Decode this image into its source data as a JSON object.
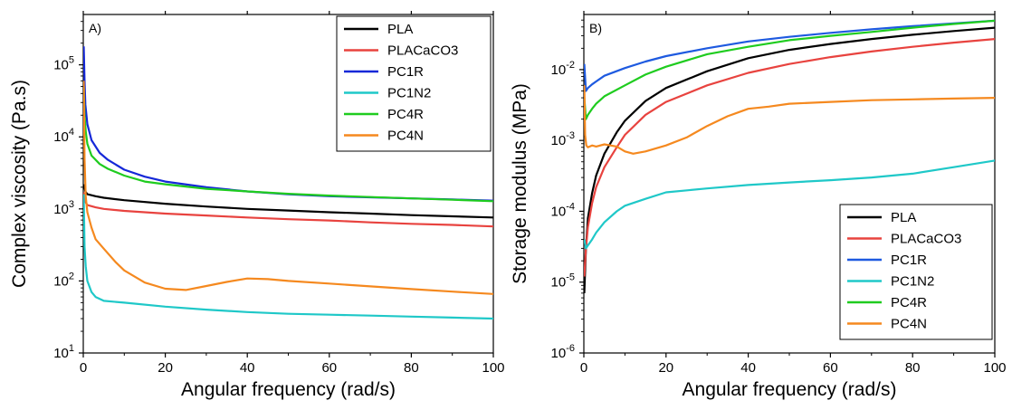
{
  "chart_data": [
    {
      "type": "line",
      "panel_label": "A)",
      "xlabel": "Angular frequency (rad/s)",
      "ylabel": "Complex viscosity (Pa.s)",
      "xlim": [
        0,
        100
      ],
      "ylim": [
        10,
        500000
      ],
      "yscale": "log",
      "x_ticks": [
        0,
        20,
        40,
        60,
        80,
        100
      ],
      "y_ticks": [
        {
          "value": 10,
          "base": "10",
          "exp": "1"
        },
        {
          "value": 100,
          "base": "10",
          "exp": "2"
        },
        {
          "value": 1000,
          "base": "10",
          "exp": "3"
        },
        {
          "value": 10000,
          "base": "10",
          "exp": "4"
        },
        {
          "value": 100000,
          "base": "10",
          "exp": "5"
        }
      ],
      "grid": false,
      "legend_position": "top-right",
      "series": [
        {
          "name": "PLA",
          "color": "#000000",
          "points": [
            [
              0.1,
              2200
            ],
            [
              0.5,
              1750
            ],
            [
              1,
              1600
            ],
            [
              3,
              1500
            ],
            [
              5,
              1430
            ],
            [
              10,
              1320
            ],
            [
              20,
              1180
            ],
            [
              30,
              1080
            ],
            [
              40,
              1000
            ],
            [
              50,
              950
            ],
            [
              60,
              900
            ],
            [
              70,
              860
            ],
            [
              80,
              820
            ],
            [
              90,
              790
            ],
            [
              100,
              760
            ]
          ]
        },
        {
          "name": "PLACaCO3",
          "color": "#e8433f",
          "points": [
            [
              0.1,
              1700
            ],
            [
              0.5,
              1250
            ],
            [
              1,
              1130
            ],
            [
              3,
              1050
            ],
            [
              5,
              1000
            ],
            [
              10,
              940
            ],
            [
              20,
              860
            ],
            [
              30,
              810
            ],
            [
              40,
              760
            ],
            [
              50,
              720
            ],
            [
              60,
              690
            ],
            [
              70,
              650
            ],
            [
              80,
              620
            ],
            [
              90,
              600
            ],
            [
              100,
              570
            ]
          ]
        },
        {
          "name": "PC1R",
          "color": "#1528d8",
          "points": [
            [
              0.1,
              180000
            ],
            [
              0.3,
              60000
            ],
            [
              0.5,
              28000
            ],
            [
              1,
              15000
            ],
            [
              2,
              9000
            ],
            [
              4,
              6000
            ],
            [
              6,
              4800
            ],
            [
              10,
              3500
            ],
            [
              15,
              2800
            ],
            [
              20,
              2400
            ],
            [
              30,
              2000
            ],
            [
              40,
              1750
            ],
            [
              50,
              1600
            ],
            [
              60,
              1500
            ],
            [
              70,
              1450
            ],
            [
              80,
              1400
            ],
            [
              90,
              1350
            ],
            [
              100,
              1300
            ]
          ]
        },
        {
          "name": "PC1N2",
          "color": "#1fc8c8",
          "points": [
            [
              0.1,
              1600
            ],
            [
              0.3,
              300
            ],
            [
              0.6,
              160
            ],
            [
              1,
              100
            ],
            [
              2,
              70
            ],
            [
              3,
              60
            ],
            [
              5,
              53
            ],
            [
              10,
              50
            ],
            [
              20,
              44
            ],
            [
              30,
              40
            ],
            [
              40,
              37
            ],
            [
              50,
              35
            ],
            [
              60,
              34
            ],
            [
              70,
              33
            ],
            [
              80,
              32
            ],
            [
              90,
              31
            ],
            [
              100,
              30
            ]
          ]
        },
        {
          "name": "PC4R",
          "color": "#1fcc1f",
          "points": [
            [
              0.1,
              50000
            ],
            [
              0.3,
              20000
            ],
            [
              0.6,
              12000
            ],
            [
              1,
              8000
            ],
            [
              2,
              5500
            ],
            [
              4,
              4200
            ],
            [
              6,
              3600
            ],
            [
              10,
              2900
            ],
            [
              15,
              2400
            ],
            [
              20,
              2200
            ],
            [
              30,
              1900
            ],
            [
              40,
              1750
            ],
            [
              50,
              1620
            ],
            [
              60,
              1530
            ],
            [
              70,
              1460
            ],
            [
              80,
              1400
            ],
            [
              90,
              1340
            ],
            [
              100,
              1280
            ]
          ]
        },
        {
          "name": "PC4N",
          "color": "#f5891f",
          "points": [
            [
              0.1,
              60000
            ],
            [
              0.3,
              5000
            ],
            [
              0.6,
              1500
            ],
            [
              1,
              900
            ],
            [
              2,
              550
            ],
            [
              3,
              380
            ],
            [
              5,
              280
            ],
            [
              8,
              180
            ],
            [
              10,
              140
            ],
            [
              15,
              95
            ],
            [
              20,
              78
            ],
            [
              25,
              75
            ],
            [
              30,
              85
            ],
            [
              35,
              97
            ],
            [
              40,
              108
            ],
            [
              45,
              106
            ],
            [
              50,
              100
            ],
            [
              60,
              92
            ],
            [
              70,
              84
            ],
            [
              80,
              77
            ],
            [
              90,
              71
            ],
            [
              100,
              66
            ]
          ]
        }
      ]
    },
    {
      "type": "line",
      "panel_label": "B)",
      "xlabel": "Angular frequency (rad/s)",
      "ylabel": "Storage modulus (MPa)",
      "xlim": [
        0,
        100
      ],
      "ylim": [
        1e-06,
        0.06
      ],
      "yscale": "log",
      "x_ticks": [
        0,
        20,
        40,
        60,
        80,
        100
      ],
      "y_ticks": [
        {
          "value": 1e-06,
          "base": "10",
          "exp": "-6"
        },
        {
          "value": 1e-05,
          "base": "10",
          "exp": "-5"
        },
        {
          "value": 0.0001,
          "base": "10",
          "exp": "-4"
        },
        {
          "value": 0.001,
          "base": "10",
          "exp": "-3"
        },
        {
          "value": 0.01,
          "base": "10",
          "exp": "-2"
        }
      ],
      "grid": false,
      "legend_position": "bottom-right",
      "series": [
        {
          "name": "PLA",
          "color": "#000000",
          "points": [
            [
              0.1,
              7e-06
            ],
            [
              0.5,
              3e-05
            ],
            [
              1,
              8e-05
            ],
            [
              2,
              0.00018
            ],
            [
              3,
              0.00032
            ],
            [
              5,
              0.00065
            ],
            [
              8,
              0.0013
            ],
            [
              10,
              0.0019
            ],
            [
              15,
              0.0036
            ],
            [
              20,
              0.0055
            ],
            [
              30,
              0.0095
            ],
            [
              40,
              0.0145
            ],
            [
              50,
              0.019
            ],
            [
              60,
              0.023
            ],
            [
              70,
              0.027
            ],
            [
              80,
              0.031
            ],
            [
              90,
              0.035
            ],
            [
              100,
              0.039
            ]
          ]
        },
        {
          "name": "PLACaCO3",
          "color": "#e8433f",
          "points": [
            [
              0.1,
              1.2e-05
            ],
            [
              0.5,
              3e-05
            ],
            [
              1,
              6e-05
            ],
            [
              2,
              0.00013
            ],
            [
              3,
              0.00022
            ],
            [
              5,
              0.00042
            ],
            [
              8,
              0.0008
            ],
            [
              10,
              0.0012
            ],
            [
              15,
              0.0023
            ],
            [
              20,
              0.0035
            ],
            [
              30,
              0.006
            ],
            [
              40,
              0.009
            ],
            [
              50,
              0.012
            ],
            [
              60,
              0.015
            ],
            [
              70,
              0.018
            ],
            [
              80,
              0.021
            ],
            [
              90,
              0.024
            ],
            [
              100,
              0.027
            ]
          ]
        },
        {
          "name": "PC1R",
          "color": "#1e5ae0",
          "points": [
            [
              0.1,
              0.012
            ],
            [
              0.5,
              0.005
            ],
            [
              1,
              0.0055
            ],
            [
              2,
              0.0062
            ],
            [
              3,
              0.0068
            ],
            [
              5,
              0.0082
            ],
            [
              10,
              0.0105
            ],
            [
              15,
              0.013
            ],
            [
              20,
              0.0155
            ],
            [
              30,
              0.02
            ],
            [
              40,
              0.025
            ],
            [
              50,
              0.029
            ],
            [
              60,
              0.033
            ],
            [
              70,
              0.037
            ],
            [
              80,
              0.041
            ],
            [
              90,
              0.045
            ],
            [
              100,
              0.049
            ]
          ]
        },
        {
          "name": "PC1N2",
          "color": "#1fc8c8",
          "points": [
            [
              0.1,
              4e-05
            ],
            [
              0.5,
              3e-05
            ],
            [
              1,
              3.3e-05
            ],
            [
              2,
              4e-05
            ],
            [
              3,
              5e-05
            ],
            [
              5,
              7e-05
            ],
            [
              8,
              0.0001
            ],
            [
              10,
              0.00012
            ],
            [
              15,
              0.00015
            ],
            [
              20,
              0.000185
            ],
            [
              30,
              0.00021
            ],
            [
              40,
              0.000235
            ],
            [
              50,
              0.000255
            ],
            [
              60,
              0.000275
            ],
            [
              70,
              0.0003
            ],
            [
              80,
              0.00034
            ],
            [
              90,
              0.00042
            ],
            [
              100,
              0.00052
            ]
          ]
        },
        {
          "name": "PC4R",
          "color": "#1fcc1f",
          "points": [
            [
              0.1,
              0.004
            ],
            [
              0.5,
              0.002
            ],
            [
              1,
              0.0023
            ],
            [
              2,
              0.0028
            ],
            [
              3,
              0.0033
            ],
            [
              5,
              0.0042
            ],
            [
              10,
              0.006
            ],
            [
              15,
              0.0085
            ],
            [
              20,
              0.011
            ],
            [
              30,
              0.0165
            ],
            [
              40,
              0.021
            ],
            [
              50,
              0.026
            ],
            [
              60,
              0.03
            ],
            [
              70,
              0.034
            ],
            [
              80,
              0.039
            ],
            [
              90,
              0.044
            ],
            [
              100,
              0.049
            ]
          ]
        },
        {
          "name": "PC4N",
          "color": "#f5891f",
          "points": [
            [
              0.1,
              0.006
            ],
            [
              0.3,
              0.0012
            ],
            [
              0.6,
              0.00085
            ],
            [
              1,
              0.0008
            ],
            [
              2,
              0.00085
            ],
            [
              3,
              0.00082
            ],
            [
              5,
              0.00088
            ],
            [
              8,
              0.00082
            ],
            [
              10,
              0.0007
            ],
            [
              12,
              0.00065
            ],
            [
              15,
              0.0007
            ],
            [
              20,
              0.00085
            ],
            [
              25,
              0.0011
            ],
            [
              30,
              0.0016
            ],
            [
              35,
              0.0022
            ],
            [
              40,
              0.0028
            ],
            [
              45,
              0.003
            ],
            [
              50,
              0.0033
            ],
            [
              60,
              0.0035
            ],
            [
              70,
              0.0037
            ],
            [
              80,
              0.0038
            ],
            [
              90,
              0.0039
            ],
            [
              100,
              0.004
            ]
          ]
        }
      ]
    }
  ]
}
